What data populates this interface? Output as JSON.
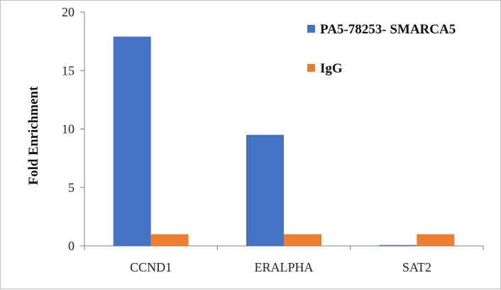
{
  "chart_data": {
    "type": "bar",
    "categories": [
      "CCND1",
      "ERALPHA",
      "SAT2"
    ],
    "series": [
      {
        "name": "PA5-78253- SMARCA5",
        "values": [
          17.9,
          9.5,
          0.08
        ],
        "color": "#4472c4"
      },
      {
        "name": "IgG",
        "values": [
          1.0,
          1.0,
          1.0
        ],
        "color": "#ed7d31"
      }
    ],
    "ylabel": "Fold Enrichment",
    "xlabel": "",
    "ylim": [
      0,
      20
    ],
    "yticks": [
      0,
      5,
      10,
      15,
      20
    ],
    "grid": false,
    "legend_position": "top-right"
  }
}
